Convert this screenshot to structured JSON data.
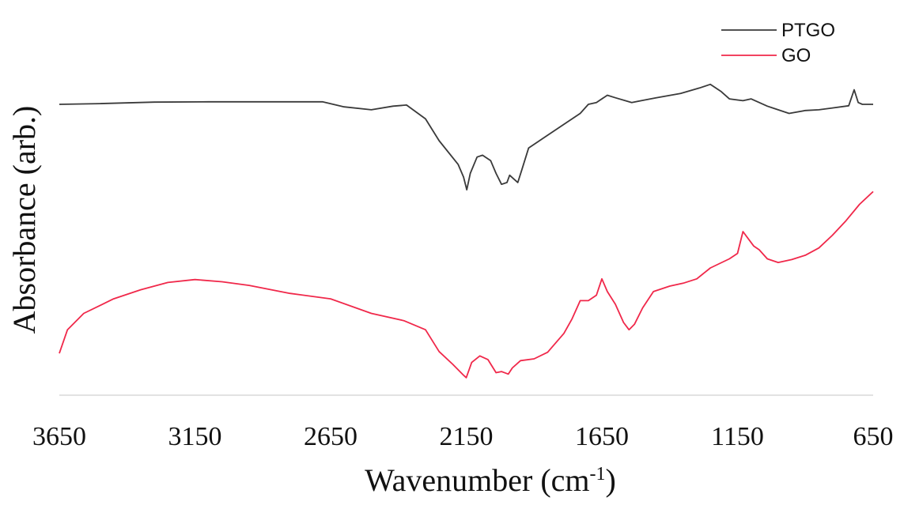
{
  "chart_data": {
    "type": "line",
    "xlabel": "Wavenumber (cm",
    "xlabel_sup": "-1",
    "xlabel_close": ")",
    "ylabel": "Absorbance  (arb.)",
    "x_reversed": true,
    "xlim": [
      3650,
      650
    ],
    "ylim": [
      0,
      1
    ],
    "x_ticks": [
      "3650",
      "3150",
      "2650",
      "2150",
      "1650",
      "1150",
      "650"
    ],
    "grid": false,
    "legend_position": "top-right",
    "series": [
      {
        "name": "PTGO",
        "color": "#3a3a3a",
        "points": [
          [
            3650,
            0.8
          ],
          [
            3500,
            0.802
          ],
          [
            3300,
            0.806
          ],
          [
            3100,
            0.807
          ],
          [
            2900,
            0.807
          ],
          [
            2680,
            0.807
          ],
          [
            2600,
            0.793
          ],
          [
            2500,
            0.785
          ],
          [
            2420,
            0.795
          ],
          [
            2370,
            0.798
          ],
          [
            2300,
            0.76
          ],
          [
            2250,
            0.7
          ],
          [
            2180,
            0.635
          ],
          [
            2160,
            0.6
          ],
          [
            2148,
            0.565
          ],
          [
            2135,
            0.61
          ],
          [
            2110,
            0.655
          ],
          [
            2090,
            0.66
          ],
          [
            2060,
            0.645
          ],
          [
            2040,
            0.61
          ],
          [
            2020,
            0.58
          ],
          [
            2000,
            0.585
          ],
          [
            1990,
            0.605
          ],
          [
            1975,
            0.595
          ],
          [
            1960,
            0.585
          ],
          [
            1945,
            0.62
          ],
          [
            1920,
            0.68
          ],
          [
            1860,
            0.71
          ],
          [
            1780,
            0.75
          ],
          [
            1730,
            0.775
          ],
          [
            1700,
            0.8
          ],
          [
            1670,
            0.805
          ],
          [
            1630,
            0.825
          ],
          [
            1600,
            0.818
          ],
          [
            1540,
            0.805
          ],
          [
            1450,
            0.818
          ],
          [
            1360,
            0.83
          ],
          [
            1290,
            0.845
          ],
          [
            1250,
            0.855
          ],
          [
            1210,
            0.835
          ],
          [
            1180,
            0.815
          ],
          [
            1130,
            0.81
          ],
          [
            1100,
            0.815
          ],
          [
            1070,
            0.805
          ],
          [
            1040,
            0.795
          ],
          [
            1020,
            0.79
          ],
          [
            960,
            0.775
          ],
          [
            900,
            0.783
          ],
          [
            850,
            0.785
          ],
          [
            800,
            0.79
          ],
          [
            740,
            0.796
          ],
          [
            720,
            0.84
          ],
          [
            705,
            0.805
          ],
          [
            690,
            0.8
          ],
          [
            650,
            0.8
          ]
        ]
      },
      {
        "name": "GO",
        "color": "#f0284a",
        "points": [
          [
            3650,
            0.115
          ],
          [
            3620,
            0.18
          ],
          [
            3560,
            0.225
          ],
          [
            3450,
            0.265
          ],
          [
            3350,
            0.29
          ],
          [
            3250,
            0.31
          ],
          [
            3150,
            0.318
          ],
          [
            3050,
            0.312
          ],
          [
            2950,
            0.302
          ],
          [
            2800,
            0.28
          ],
          [
            2650,
            0.265
          ],
          [
            2500,
            0.225
          ],
          [
            2380,
            0.205
          ],
          [
            2300,
            0.18
          ],
          [
            2250,
            0.12
          ],
          [
            2200,
            0.085
          ],
          [
            2160,
            0.055
          ],
          [
            2150,
            0.048
          ],
          [
            2130,
            0.09
          ],
          [
            2100,
            0.108
          ],
          [
            2070,
            0.098
          ],
          [
            2040,
            0.062
          ],
          [
            2020,
            0.065
          ],
          [
            1995,
            0.058
          ],
          [
            1980,
            0.075
          ],
          [
            1950,
            0.095
          ],
          [
            1900,
            0.1
          ],
          [
            1850,
            0.118
          ],
          [
            1790,
            0.17
          ],
          [
            1760,
            0.21
          ],
          [
            1730,
            0.26
          ],
          [
            1700,
            0.26
          ],
          [
            1670,
            0.275
          ],
          [
            1650,
            0.32
          ],
          [
            1630,
            0.285
          ],
          [
            1600,
            0.25
          ],
          [
            1570,
            0.2
          ],
          [
            1550,
            0.18
          ],
          [
            1530,
            0.195
          ],
          [
            1500,
            0.24
          ],
          [
            1460,
            0.285
          ],
          [
            1400,
            0.3
          ],
          [
            1350,
            0.308
          ],
          [
            1300,
            0.32
          ],
          [
            1250,
            0.35
          ],
          [
            1180,
            0.375
          ],
          [
            1150,
            0.39
          ],
          [
            1130,
            0.45
          ],
          [
            1110,
            0.43
          ],
          [
            1090,
            0.41
          ],
          [
            1070,
            0.4
          ],
          [
            1040,
            0.375
          ],
          [
            1000,
            0.365
          ],
          [
            950,
            0.373
          ],
          [
            900,
            0.385
          ],
          [
            850,
            0.405
          ],
          [
            800,
            0.44
          ],
          [
            750,
            0.48
          ],
          [
            700,
            0.525
          ],
          [
            650,
            0.56
          ]
        ]
      }
    ]
  }
}
